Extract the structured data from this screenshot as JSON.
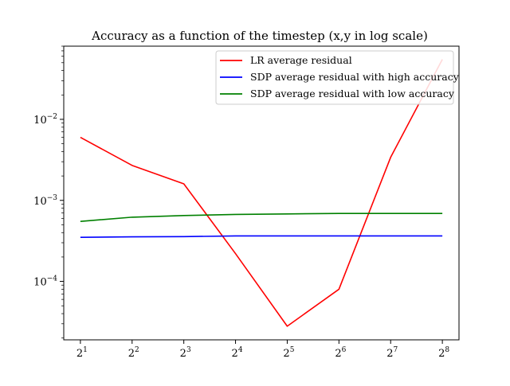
{
  "chart_data": {
    "type": "line",
    "title": "Accuracy as a function of the timestep (x,y in log scale)",
    "xlabel": "",
    "ylabel": "",
    "x_scale": "log2",
    "y_scale": "log10",
    "x": [
      2,
      4,
      8,
      16,
      32,
      64,
      128,
      256
    ],
    "x_tick_labels": [
      {
        "base": "2",
        "exp": "1"
      },
      {
        "base": "2",
        "exp": "2"
      },
      {
        "base": "2",
        "exp": "3"
      },
      {
        "base": "2",
        "exp": "4"
      },
      {
        "base": "2",
        "exp": "5"
      },
      {
        "base": "2",
        "exp": "6"
      },
      {
        "base": "2",
        "exp": "7"
      },
      {
        "base": "2",
        "exp": "8"
      }
    ],
    "y_tick_labels": [
      {
        "value": 0.01,
        "base": "10",
        "exp": "−2"
      },
      {
        "value": 0.001,
        "base": "10",
        "exp": "−3"
      },
      {
        "value": 0.0001,
        "base": "10",
        "exp": "−4"
      }
    ],
    "xlim": [
      1.6,
      320
    ],
    "ylim": [
      1.9e-05,
      0.08
    ],
    "grid": false,
    "legend_position": "top-right",
    "series": [
      {
        "name": "LR average residual",
        "color": "#ff0000",
        "values": [
          0.006,
          0.0027,
          0.0016,
          0.00022,
          2.8e-05,
          8e-05,
          0.0034,
          0.055
        ]
      },
      {
        "name": "SDP average residual with high accuracy",
        "color": "#0000ff",
        "values": [
          0.00035,
          0.000355,
          0.000357,
          0.000364,
          0.000364,
          0.000364,
          0.000364,
          0.000364
        ]
      },
      {
        "name": "SDP average residual with low accuracy",
        "color": "#008000",
        "values": [
          0.00055,
          0.00062,
          0.00065,
          0.00067,
          0.00068,
          0.00069,
          0.00069,
          0.00069
        ]
      }
    ]
  }
}
